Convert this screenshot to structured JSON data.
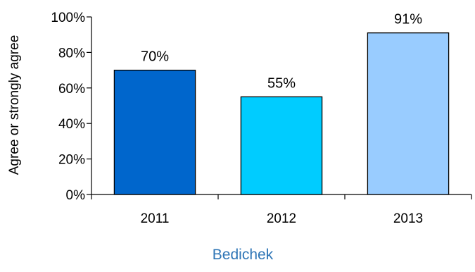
{
  "chart_data": {
    "type": "bar",
    "categories": [
      "2011",
      "2012",
      "2013"
    ],
    "values": [
      70,
      55,
      91
    ],
    "value_labels": [
      "70%",
      "55%",
      "91%"
    ],
    "bar_colors": [
      "#0066CC",
      "#00CCFF",
      "#99CCFF"
    ],
    "ylabel": "Agree or strongly agree",
    "xlabel": "Bedichek",
    "xlabel_color": "#2E75B6",
    "ylim": [
      0,
      100
    ],
    "yticks": [
      0,
      20,
      40,
      60,
      80,
      100
    ],
    "ytick_labels": [
      "0%",
      "20%",
      "40%",
      "60%",
      "80%",
      "100%"
    ],
    "grid": false,
    "legend": "none"
  }
}
